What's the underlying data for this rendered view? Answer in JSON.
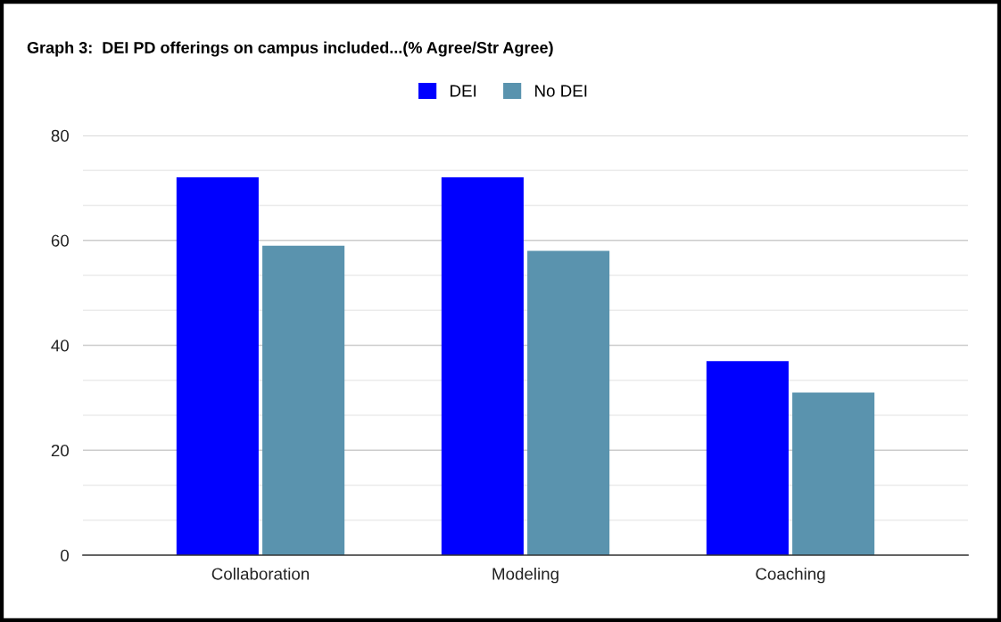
{
  "chart_data": {
    "type": "bar",
    "title": "Graph 3:  DEI PD offerings on campus included...(% Agree/Str Agree)",
    "categories": [
      "Collaboration",
      "Modeling",
      "Coaching"
    ],
    "series": [
      {
        "name": "DEI",
        "color": "#0000ff",
        "values": [
          72,
          72,
          37
        ]
      },
      {
        "name": "No DEI",
        "color": "#5a93ae",
        "values": [
          59,
          58,
          31
        ]
      }
    ],
    "ylim": [
      0,
      80
    ],
    "yticks": [
      0,
      {
        "value": 6.67,
        "label": null
      },
      {
        "value": 13.33,
        "label": null
      },
      20,
      {
        "value": 26.67,
        "label": null
      },
      {
        "value": 33.33,
        "label": null
      },
      40,
      {
        "value": 46.67,
        "label": null
      },
      {
        "value": 53.33,
        "label": null
      },
      60,
      {
        "value": 66.67,
        "label": null
      },
      {
        "value": 73.33,
        "label": null
      },
      80
    ],
    "grid": "y",
    "legend": "top"
  }
}
